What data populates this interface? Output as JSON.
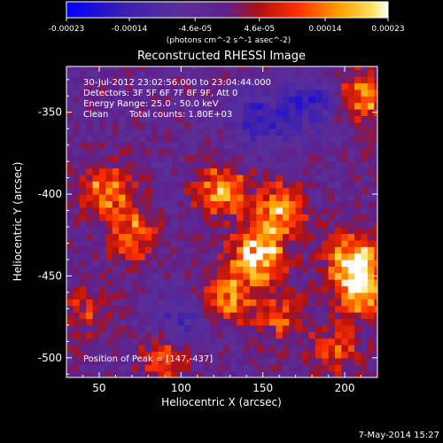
{
  "chart_data": {
    "type": "heatmap",
    "title": "Reconstructed RHESSI Image",
    "xlabel": "Heliocentric X (arcsec)",
    "ylabel": "Heliocentric Y (arcsec)",
    "xlim": [
      30,
      220
    ],
    "ylim": [
      -512,
      -322
    ],
    "xticks": [
      50,
      100,
      150,
      200
    ],
    "yticks": [
      -350,
      -400,
      -450,
      -500
    ],
    "colorbar": {
      "ticks": [
        "-0.00023",
        "-0.00014",
        "-4.6e-05",
        "4.6e-05",
        "0.00014",
        "0.00023"
      ],
      "tick_values": [
        -0.00023,
        -0.00014,
        -4.6e-05,
        4.6e-05,
        0.00014,
        0.00023
      ],
      "range": [
        -0.00023,
        0.00023
      ],
      "units": "(photons cm^-2 s^-1 asec^-2)",
      "colors": [
        "#0000ff",
        "#4a1a8f",
        "#7a3fa0",
        "#c02020",
        "#ff6a00",
        "#ffd040",
        "#ffffff"
      ]
    },
    "annotations": [
      "30-Jul-2012 23:02:56.000 to 23:04:44.000",
      "Detectors: 3F 5F 6F 7F 8F 9F, Att 0",
      "Energy Range: 25.0 - 50.0 keV",
      "Clean",
      "Total counts: 1.80E+03"
    ],
    "peak_label": "Position of Peak = [147,-437]",
    "peak": [
      147,
      -437
    ],
    "sources": [
      {
        "x": 147,
        "y": -437,
        "amp": 1.0
      },
      {
        "x": 160,
        "y": -410,
        "amp": 0.8
      },
      {
        "x": 125,
        "y": -398,
        "amp": 0.75
      },
      {
        "x": 205,
        "y": -440,
        "amp": 0.95
      },
      {
        "x": 210,
        "y": -460,
        "amp": 0.8
      },
      {
        "x": 55,
        "y": -398,
        "amp": 0.7
      },
      {
        "x": 70,
        "y": -425,
        "amp": 0.6
      },
      {
        "x": 210,
        "y": -340,
        "amp": 0.7
      },
      {
        "x": 130,
        "y": -462,
        "amp": 0.6
      },
      {
        "x": 160,
        "y": -475,
        "amp": 0.45
      },
      {
        "x": 90,
        "y": -500,
        "amp": 0.5
      },
      {
        "x": 40,
        "y": -470,
        "amp": 0.4
      },
      {
        "x": 195,
        "y": -495,
        "amp": 0.45
      }
    ],
    "background_level": 0.45,
    "negative_regions": [
      {
        "x": 150,
        "y": -355,
        "amp": 0.6
      },
      {
        "x": 180,
        "y": -345,
        "amp": 0.55
      },
      {
        "x": 100,
        "y": -478,
        "amp": 0.45
      }
    ]
  },
  "footer": {
    "date": "7-May-2014 15:27"
  }
}
